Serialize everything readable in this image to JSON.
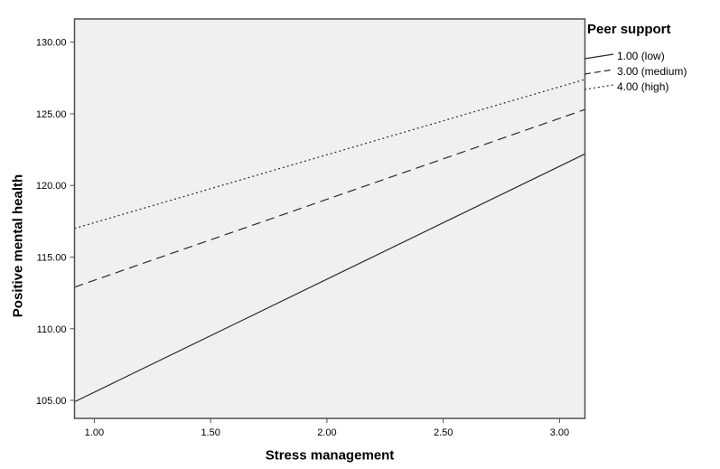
{
  "chart_data": {
    "type": "line",
    "title": "",
    "xlabel": "Stress management",
    "ylabel": "Positive mental health",
    "legend_title": "Peer support",
    "legend_position": "top-right-outside",
    "grid": false,
    "xlim": [
      0.915,
      3.109
    ],
    "ylim": [
      103.74,
      131.62
    ],
    "xticks": {
      "values": [
        1.0,
        1.5,
        2.0,
        2.5,
        3.0
      ],
      "labels": [
        "1.00",
        "1.50",
        "2.00",
        "2.50",
        "3.00"
      ]
    },
    "yticks": {
      "values": [
        105,
        110,
        115,
        120,
        125,
        130
      ],
      "labels": [
        "105.00",
        "110.00",
        "115.00",
        "120.00",
        "125.00",
        "130.00"
      ]
    },
    "series": [
      {
        "name": "1.00 (low)",
        "style": "solid",
        "x": [
          0.915,
          3.109
        ],
        "y": [
          104.9,
          122.2
        ]
      },
      {
        "name": "3.00 (medium)",
        "style": "dashed",
        "x": [
          0.915,
          3.109
        ],
        "y": [
          112.9,
          125.3
        ]
      },
      {
        "name": "4.00 (high)",
        "style": "dotted",
        "x": [
          0.915,
          3.109
        ],
        "y": [
          117.0,
          127.4
        ]
      }
    ],
    "colors": {
      "line": "#2b2b2b",
      "plot_bg": "#f0f0f0",
      "plot_border": "#4f4f4f",
      "tick": "#4f4f4f",
      "text": "#000000",
      "page_bg": "#ffffff"
    }
  }
}
